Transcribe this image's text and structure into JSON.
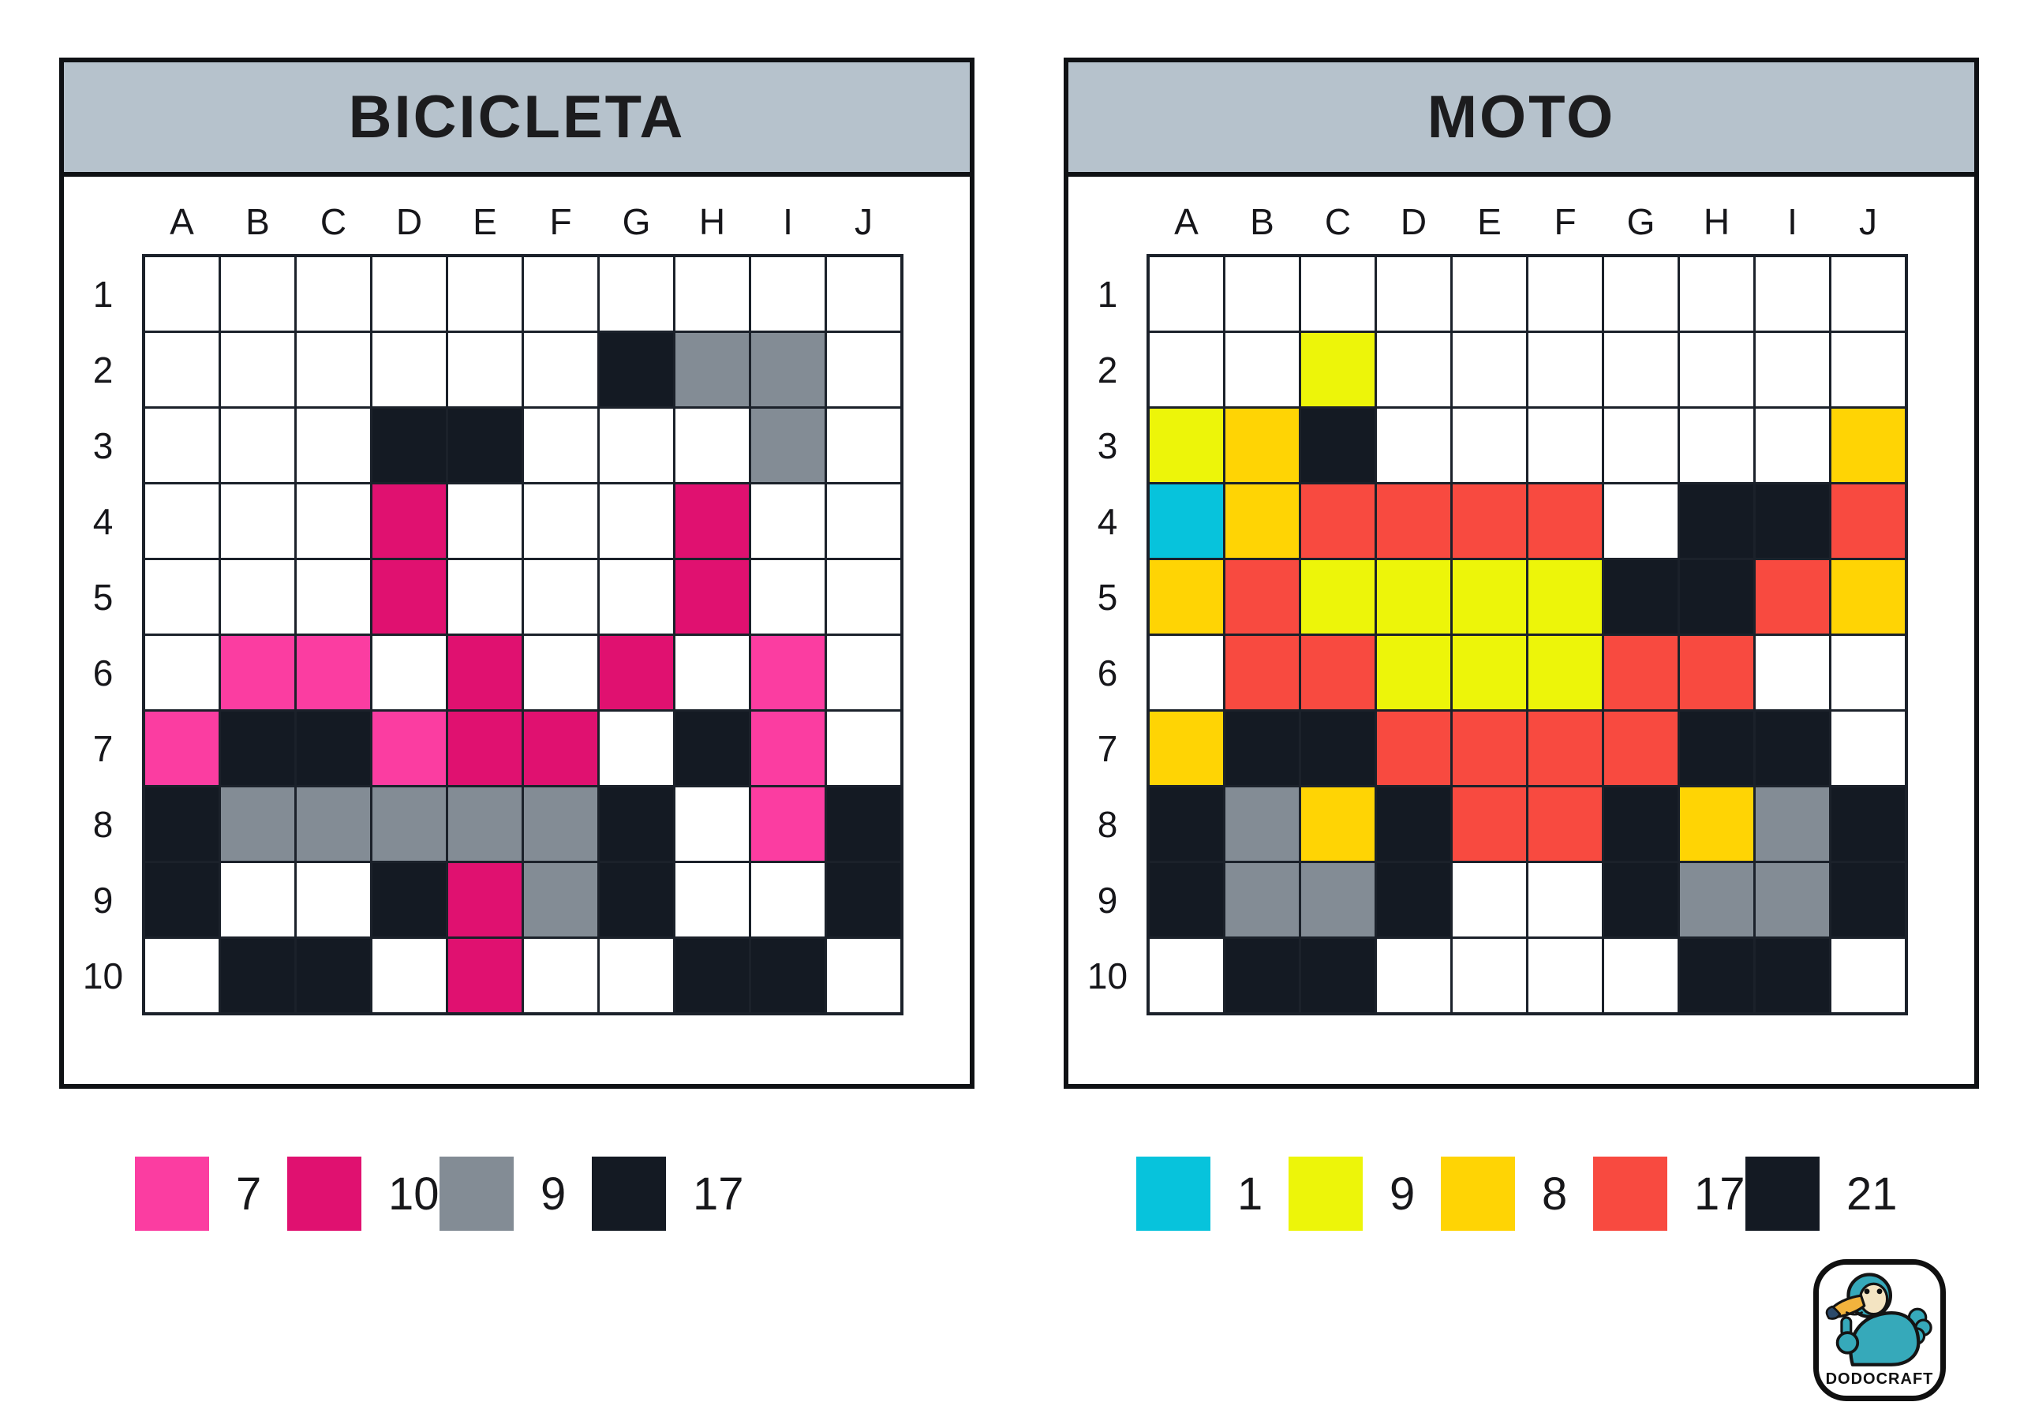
{
  "palette": {
    ".": "#ffffff",
    "P": "#fb3da1",
    "M": "#e01170",
    "G": "#838c95",
    "K": "#141a23",
    "C": "#07c3dc",
    "Y": "#edf509",
    "D": "#ffd404",
    "R": "#f84a40"
  },
  "colors": {
    "header_bg": "#b6c2cc",
    "grid_line": "#1b212a",
    "card_border": "#0f1114",
    "page_bg": "#ffffff"
  },
  "puzzles": [
    {
      "title": "BICICLETA",
      "columns": [
        "A",
        "B",
        "C",
        "D",
        "E",
        "F",
        "G",
        "H",
        "I",
        "J"
      ],
      "rows": [
        "1",
        "2",
        "3",
        "4",
        "5",
        "6",
        "7",
        "8",
        "9",
        "10"
      ],
      "grid": [
        "..........",
        "......KGG.",
        "...KK...G.",
        "...M...M..",
        "...M...M..",
        ".PP.M.M.P.",
        "PKKPMM.KP.",
        "KGGGGGK.PK",
        "K..KMGK..K",
        ".KK.M..KK."
      ],
      "legend": [
        {
          "name": "pink",
          "color_key": "P",
          "color": "#fb3da1",
          "count": "7"
        },
        {
          "name": "magenta",
          "color_key": "M",
          "color": "#e01170",
          "count": "10"
        },
        {
          "name": "gray",
          "color_key": "G",
          "color": "#838c95",
          "count": "9"
        },
        {
          "name": "black",
          "color_key": "K",
          "color": "#141a23",
          "count": "17"
        }
      ]
    },
    {
      "title": "MOTO",
      "columns": [
        "A",
        "B",
        "C",
        "D",
        "E",
        "F",
        "G",
        "H",
        "I",
        "J"
      ],
      "rows": [
        "1",
        "2",
        "3",
        "4",
        "5",
        "6",
        "7",
        "8",
        "9",
        "10"
      ],
      "grid": [
        "..........",
        "..Y.......",
        "YDK......D",
        "CDRRRR.KKR",
        "DRYYYYKKRD",
        ".RRYYYRR..",
        "DKKRRRRKK.",
        "KGDKRRKDGK",
        "KGGK..KGGK",
        ".KK....KK."
      ],
      "legend": [
        {
          "name": "cyan",
          "color_key": "C",
          "color": "#07c3dc",
          "count": "1"
        },
        {
          "name": "yellow",
          "color_key": "Y",
          "color": "#edf509",
          "count": "9"
        },
        {
          "name": "gold",
          "color_key": "D",
          "color": "#ffd404",
          "count": "8"
        },
        {
          "name": "red",
          "color_key": "R",
          "color": "#f84a40",
          "count": "17"
        },
        {
          "name": "black",
          "color_key": "K",
          "color": "#141a23",
          "count": "21"
        }
      ]
    }
  ],
  "logo": {
    "text": "DODOCRAFT"
  }
}
